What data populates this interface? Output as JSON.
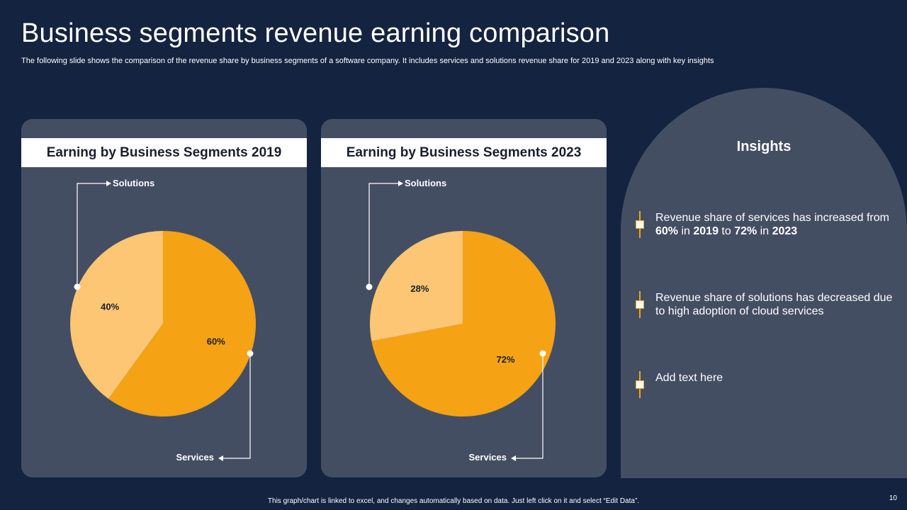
{
  "title": "Business segments revenue earning comparison",
  "subtitle": "The following slide shows the comparison of the revenue share by business segments of a software company. It includes services and solutions revenue share for 2019 and 2023 along with key insights",
  "colors": {
    "services": "#f5a214",
    "solutions": "#fcc674",
    "panel": "#444e63",
    "background": "#142340"
  },
  "chart_data": [
    {
      "type": "pie",
      "title": "Earning by Business Segments 2019",
      "categories": [
        "Services",
        "Solutions"
      ],
      "values": [
        60,
        40
      ],
      "labels": [
        "60%",
        "40%"
      ],
      "legend": {
        "services": "Services",
        "solutions": "Solutions"
      }
    },
    {
      "type": "pie",
      "title": "Earning by Business Segments 2023",
      "categories": [
        "Services",
        "Solutions"
      ],
      "values": [
        72,
        28
      ],
      "labels": [
        "72%",
        "28%"
      ],
      "legend": {
        "services": "Services",
        "solutions": "Solutions"
      }
    }
  ],
  "insights": {
    "title": "Insights",
    "items": [
      {
        "parts": [
          "Revenue share of services has increased from ",
          "60%",
          " in ",
          "2019",
          " to ",
          "72%",
          " in ",
          "2023"
        ]
      },
      {
        "parts": [
          "Revenue share of solutions has decreased due to high adoption of cloud services"
        ]
      },
      {
        "parts": [
          "Add text here"
        ]
      }
    ]
  },
  "footer": "This graph/chart is linked to excel, and changes automatically based on data. Just left click on it and select “Edit Data”.",
  "page_number": "10"
}
